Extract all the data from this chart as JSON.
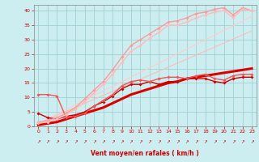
{
  "xlabel": "Vent moyen/en rafales ( km/h )",
  "xlim": [
    -0.5,
    23.5
  ],
  "ylim": [
    0,
    42
  ],
  "yticks": [
    0,
    5,
    10,
    15,
    20,
    25,
    30,
    35,
    40
  ],
  "xticks": [
    0,
    1,
    2,
    3,
    4,
    5,
    6,
    7,
    8,
    9,
    10,
    11,
    12,
    13,
    14,
    15,
    16,
    17,
    18,
    19,
    20,
    21,
    22,
    23
  ],
  "bg_color": "#cceef0",
  "grid_color": "#99cccc",
  "series": [
    {
      "x": [
        0,
        1,
        2,
        3,
        4,
        5,
        6,
        7,
        8,
        9,
        10,
        11,
        12,
        13,
        14,
        15,
        16,
        17,
        18,
        19,
        20,
        21,
        22,
        23
      ],
      "y": [
        0.5,
        1.0,
        1.5,
        2.5,
        3.5,
        4.5,
        5.5,
        6.5,
        8.0,
        9.5,
        11.0,
        12.0,
        13.0,
        14.0,
        15.0,
        15.5,
        16.5,
        17.0,
        17.5,
        18.0,
        18.5,
        19.0,
        19.5,
        20.0
      ],
      "color": "#dd0000",
      "lw": 2.2,
      "marker": null,
      "ms": 0
    },
    {
      "x": [
        0,
        1,
        2,
        3,
        4,
        5,
        6,
        7,
        8,
        9,
        10,
        11,
        12,
        13,
        14,
        15,
        16,
        17,
        18,
        19,
        20,
        21,
        22,
        23
      ],
      "y": [
        4.5,
        3.0,
        2.5,
        3.5,
        4.0,
        5.0,
        7.0,
        8.5,
        10.5,
        13.0,
        14.5,
        14.5,
        15.5,
        14.5,
        15.5,
        15.5,
        16.5,
        16.5,
        16.5,
        15.5,
        15.0,
        16.5,
        17.0,
        17.0
      ],
      "color": "#cc0000",
      "lw": 1.0,
      "marker": "D",
      "ms": 1.8
    },
    {
      "x": [
        0,
        1,
        2,
        3,
        4,
        5,
        6,
        7,
        8,
        9,
        10,
        11,
        12,
        13,
        14,
        15,
        16,
        17,
        18,
        19,
        20,
        21,
        22,
        23
      ],
      "y": [
        11.0,
        11.0,
        10.5,
        3.0,
        3.5,
        4.5,
        7.0,
        9.0,
        11.0,
        14.0,
        15.5,
        16.0,
        15.5,
        16.5,
        17.0,
        17.0,
        16.5,
        17.5,
        18.0,
        16.5,
        16.0,
        17.5,
        18.0,
        18.0
      ],
      "color": "#ee5555",
      "lw": 1.0,
      "marker": "D",
      "ms": 1.8
    },
    {
      "x": [
        0,
        1,
        2,
        3,
        4,
        5,
        6,
        7,
        8,
        9,
        10,
        11,
        12,
        13,
        14,
        15,
        16,
        17,
        18,
        19,
        20,
        21,
        22,
        23
      ],
      "y": [
        1.5,
        2.0,
        3.0,
        4.5,
        6.5,
        9.5,
        12.5,
        15.5,
        19.5,
        24.0,
        28.0,
        30.0,
        32.0,
        34.0,
        36.0,
        36.5,
        37.5,
        39.0,
        39.5,
        40.5,
        41.0,
        38.5,
        41.0,
        40.0
      ],
      "color": "#ff9999",
      "lw": 1.0,
      "marker": "D",
      "ms": 1.8
    },
    {
      "x": [
        0,
        1,
        2,
        3,
        4,
        5,
        6,
        7,
        8,
        9,
        10,
        11,
        12,
        13,
        14,
        15,
        16,
        17,
        18,
        19,
        20,
        21,
        22,
        23
      ],
      "y": [
        1.0,
        1.5,
        2.5,
        4.0,
        6.0,
        8.5,
        11.5,
        14.5,
        18.0,
        22.0,
        26.0,
        28.0,
        30.5,
        32.5,
        35.0,
        35.0,
        36.0,
        37.5,
        38.5,
        39.5,
        40.0,
        37.5,
        40.5,
        40.0
      ],
      "color": "#ffbbbb",
      "lw": 1.0,
      "marker": "D",
      "ms": 1.8
    },
    {
      "x": [
        0,
        23
      ],
      "y": [
        1.0,
        38.0
      ],
      "color": "#ffcccc",
      "lw": 0.8,
      "marker": null,
      "ms": 0
    },
    {
      "x": [
        0,
        23
      ],
      "y": [
        1.0,
        33.0
      ],
      "color": "#ffbbbb",
      "lw": 0.8,
      "marker": null,
      "ms": 0
    }
  ]
}
